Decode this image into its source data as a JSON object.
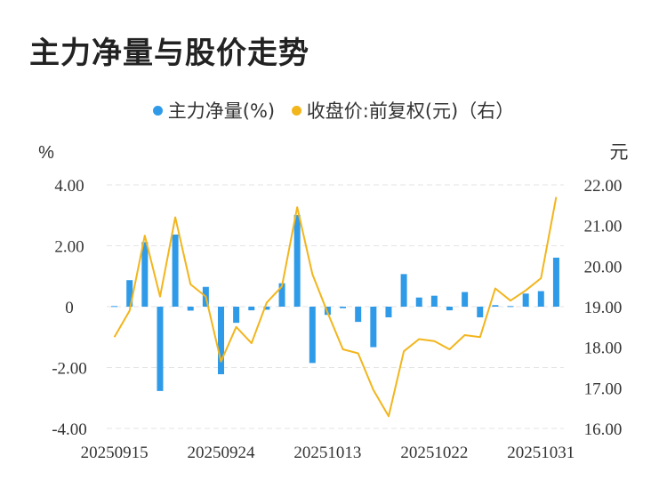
{
  "title": "主力净量与股价走势",
  "legend": {
    "bar_label": "主力净量(%)",
    "line_label": "收盘价:前复权(元)（右）"
  },
  "colors": {
    "bar": "#2f9be8",
    "line": "#f2b51c",
    "grid": "#e3e3e3",
    "text": "#333333"
  },
  "chart_data": {
    "type": "bar+line",
    "title": "主力净量与股价走势",
    "y_left_unit": "%",
    "y_right_unit": "元",
    "y_left_ticks": [
      "4.00",
      "2.00",
      "0",
      "-2.00",
      "-4.00"
    ],
    "y_left_range": [
      -4,
      4
    ],
    "y_right_ticks": [
      "22.00",
      "21.00",
      "20.00",
      "19.00",
      "18.00",
      "17.00",
      "16.00"
    ],
    "y_right_range": [
      16,
      22
    ],
    "x_tick_labels": [
      "20250915",
      "20250924",
      "20251013",
      "20251022",
      "20251031"
    ],
    "x_tick_indices": [
      0,
      7,
      14,
      21,
      28
    ],
    "series": [
      {
        "name": "主力净量(%)",
        "type": "bar",
        "axis": "left",
        "values": [
          0.02,
          0.87,
          2.12,
          -2.77,
          2.37,
          -0.13,
          0.65,
          -2.22,
          -0.53,
          -0.12,
          -0.1,
          0.77,
          3.01,
          -1.85,
          -0.27,
          -0.05,
          -0.5,
          -1.33,
          -0.35,
          1.07,
          0.3,
          0.36,
          -0.12,
          0.48,
          -0.35,
          0.05,
          0.02,
          0.43,
          0.51,
          1.61
        ]
      },
      {
        "name": "收盘价:前复权(元)（右）",
        "type": "line",
        "axis": "right",
        "values": [
          18.25,
          18.9,
          20.75,
          19.25,
          21.2,
          19.55,
          19.25,
          17.65,
          18.5,
          18.1,
          19.1,
          19.5,
          21.45,
          19.8,
          18.85,
          17.95,
          17.85,
          16.95,
          16.3,
          17.9,
          18.2,
          18.15,
          17.95,
          18.3,
          18.25,
          19.45,
          19.15,
          19.4,
          19.7,
          21.7
        ]
      }
    ]
  }
}
